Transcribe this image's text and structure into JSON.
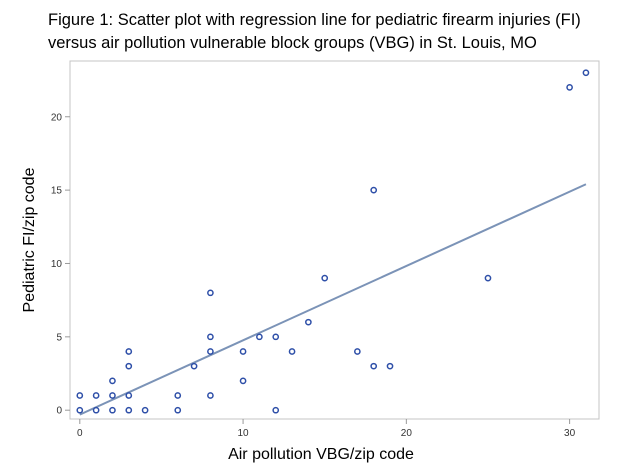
{
  "title_lines": [
    "Figure 1: Scatter plot with regression line for pediatric firearm injuries (FI)",
    "versus air pollution vulnerable block groups (VBG) in St. Louis, MO"
  ],
  "chart_data": {
    "type": "scatter",
    "title": "Figure 1: Scatter plot with regression line for pediatric firearm injuries (FI) versus air pollution vulnerable block groups (VBG) in St. Louis, MO",
    "xlabel": "Air pollution VBG/zip code",
    "ylabel": "Pediatric FI/zip code",
    "xlim": [
      -0.6,
      31.8
    ],
    "ylim": [
      -0.6,
      23.8
    ],
    "xticks": [
      0,
      10,
      20,
      30
    ],
    "yticks": [
      0,
      5,
      10,
      15,
      20
    ],
    "grid": false,
    "marker_color": "#2e4fa8",
    "line_color": "#7b93b7",
    "points": [
      {
        "x": 0,
        "y": 0
      },
      {
        "x": 0,
        "y": 1
      },
      {
        "x": 1,
        "y": 0
      },
      {
        "x": 1,
        "y": 1
      },
      {
        "x": 2,
        "y": 0
      },
      {
        "x": 2,
        "y": 1
      },
      {
        "x": 2,
        "y": 2
      },
      {
        "x": 3,
        "y": 0
      },
      {
        "x": 3,
        "y": 1
      },
      {
        "x": 3,
        "y": 3
      },
      {
        "x": 3,
        "y": 4
      },
      {
        "x": 4,
        "y": 0
      },
      {
        "x": 6,
        "y": 0
      },
      {
        "x": 6,
        "y": 1
      },
      {
        "x": 7,
        "y": 3
      },
      {
        "x": 8,
        "y": 1
      },
      {
        "x": 8,
        "y": 4
      },
      {
        "x": 8,
        "y": 5
      },
      {
        "x": 8,
        "y": 8
      },
      {
        "x": 10,
        "y": 2
      },
      {
        "x": 10,
        "y": 4
      },
      {
        "x": 11,
        "y": 5
      },
      {
        "x": 12,
        "y": 0
      },
      {
        "x": 12,
        "y": 5
      },
      {
        "x": 13,
        "y": 4
      },
      {
        "x": 14,
        "y": 6
      },
      {
        "x": 15,
        "y": 9
      },
      {
        "x": 17,
        "y": 4
      },
      {
        "x": 18,
        "y": 3
      },
      {
        "x": 18,
        "y": 15
      },
      {
        "x": 19,
        "y": 3
      },
      {
        "x": 25,
        "y": 9
      },
      {
        "x": 30,
        "y": 22
      },
      {
        "x": 31,
        "y": 23
      }
    ],
    "regression_line": {
      "x": [
        0,
        31
      ],
      "y": [
        -0.3,
        15.4
      ]
    }
  }
}
